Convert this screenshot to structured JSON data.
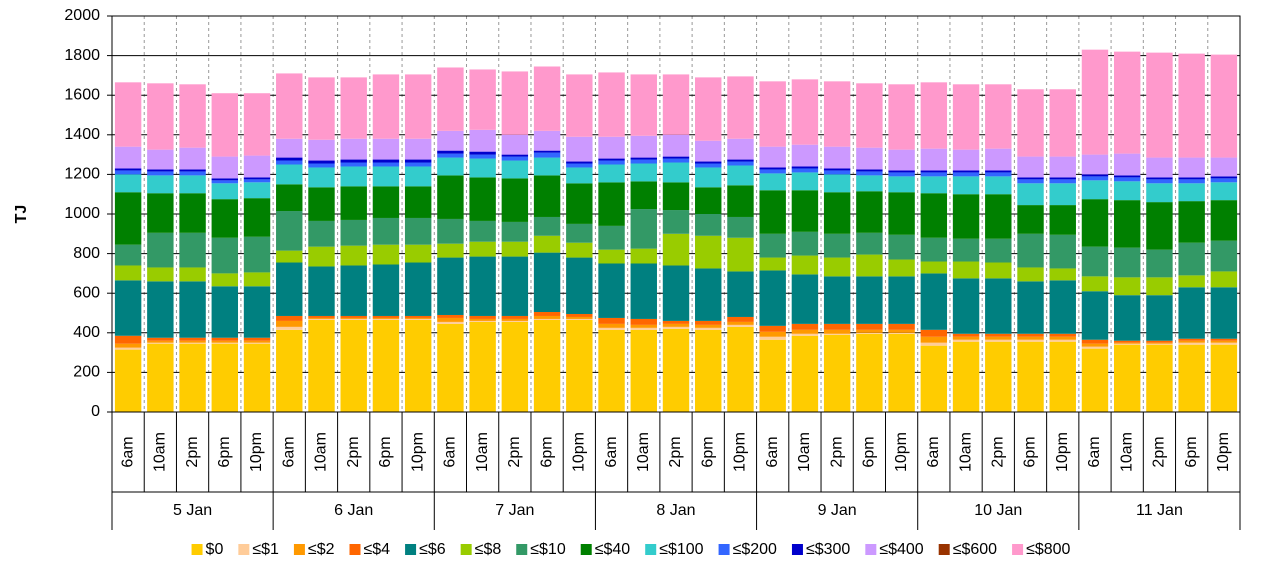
{
  "chart_data": {
    "type": "stacked-bar",
    "y_label": "TJ",
    "categories": [
      "6am",
      "10am",
      "2pm",
      "6pm",
      "10pm",
      "6am",
      "10am",
      "2pm",
      "6pm",
      "10pm",
      "6am",
      "10am",
      "2pm",
      "6pm",
      "10pm",
      "6am",
      "10am",
      "2pm",
      "6pm",
      "10pm",
      "6am",
      "10am",
      "2pm",
      "6pm",
      "10pm",
      "6am",
      "10am",
      "2pm",
      "6pm",
      "10pm",
      "6am",
      "10am",
      "2pm",
      "6pm",
      "10pm"
    ],
    "groups": [
      "5 Jan",
      "6 Jan",
      "7 Jan",
      "8 Jan",
      "9 Jan",
      "10 Jan",
      "11 Jan"
    ],
    "ylim": [
      0,
      2000
    ],
    "yticks": [
      0,
      200,
      400,
      600,
      800,
      1000,
      1200,
      1400,
      1600,
      1800,
      2000
    ],
    "grid": true,
    "series": [
      {
        "name": "$0",
        "color": "#FFCC00",
        "values": [
          315,
          345,
          345,
          345,
          345,
          415,
          465,
          465,
          465,
          465,
          445,
          455,
          455,
          465,
          465,
          415,
          415,
          420,
          415,
          430,
          365,
          385,
          390,
          395,
          395,
          335,
          355,
          355,
          355,
          355,
          320,
          340,
          340,
          340,
          340
        ]
      },
      {
        "name": "≤$1",
        "color": "#FFCC99",
        "values": [
          10,
          5,
          5,
          5,
          5,
          15,
          5,
          5,
          5,
          5,
          10,
          5,
          5,
          5,
          5,
          10,
          10,
          10,
          10,
          10,
          15,
          10,
          5,
          5,
          5,
          15,
          10,
          10,
          10,
          10,
          10,
          5,
          5,
          10,
          10
        ]
      },
      {
        "name": "≤$2",
        "color": "#FF9900",
        "values": [
          20,
          10,
          10,
          10,
          10,
          30,
          5,
          5,
          5,
          5,
          20,
          10,
          10,
          15,
          10,
          20,
          15,
          15,
          15,
          15,
          25,
          20,
          20,
          15,
          15,
          30,
          15,
          15,
          15,
          15,
          15,
          5,
          5,
          10,
          10
        ]
      },
      {
        "name": "≤$4",
        "color": "#FF6600",
        "values": [
          40,
          15,
          15,
          15,
          15,
          25,
          10,
          10,
          10,
          10,
          15,
          15,
          15,
          20,
          15,
          30,
          30,
          15,
          20,
          25,
          30,
          30,
          30,
          30,
          30,
          35,
          15,
          15,
          15,
          15,
          20,
          10,
          10,
          10,
          10
        ]
      },
      {
        "name": "≤$6",
        "color": "#008080",
        "values": [
          280,
          285,
          285,
          260,
          260,
          270,
          250,
          255,
          260,
          270,
          290,
          300,
          300,
          300,
          285,
          275,
          280,
          280,
          265,
          230,
          280,
          250,
          240,
          240,
          240,
          285,
          280,
          280,
          265,
          270,
          245,
          230,
          230,
          260,
          260
        ]
      },
      {
        "name": "≤$8",
        "color": "#99CC00",
        "values": [
          75,
          70,
          70,
          65,
          70,
          60,
          100,
          100,
          100,
          90,
          70,
          75,
          75,
          85,
          75,
          70,
          75,
          160,
          165,
          170,
          65,
          95,
          95,
          110,
          85,
          60,
          85,
          80,
          70,
          60,
          75,
          90,
          90,
          60,
          80
        ]
      },
      {
        "name": "≤$10",
        "color": "#339966",
        "values": [
          105,
          175,
          175,
          180,
          180,
          200,
          130,
          130,
          135,
          135,
          125,
          105,
          100,
          95,
          95,
          120,
          200,
          120,
          110,
          105,
          120,
          120,
          120,
          110,
          125,
          120,
          115,
          120,
          170,
          170,
          150,
          150,
          140,
          165,
          155
        ]
      },
      {
        "name": "≤$40",
        "color": "#008000",
        "values": [
          265,
          200,
          200,
          195,
          195,
          135,
          170,
          170,
          160,
          160,
          220,
          220,
          220,
          210,
          205,
          220,
          140,
          140,
          135,
          160,
          220,
          210,
          210,
          210,
          215,
          225,
          225,
          225,
          145,
          150,
          240,
          240,
          240,
          210,
          205
        ]
      },
      {
        "name": "≤$100",
        "color": "#33CCCC",
        "values": [
          90,
          90,
          90,
          80,
          80,
          100,
          100,
          100,
          100,
          100,
          90,
          95,
          90,
          90,
          80,
          90,
          90,
          100,
          100,
          100,
          85,
          90,
          90,
          80,
          80,
          85,
          90,
          90,
          110,
          110,
          95,
          95,
          95,
          90,
          90
        ]
      },
      {
        "name": "≤$200",
        "color": "#3366FF",
        "values": [
          20,
          20,
          20,
          15,
          15,
          20,
          20,
          20,
          20,
          20,
          20,
          20,
          20,
          25,
          20,
          20,
          20,
          20,
          20,
          20,
          20,
          20,
          20,
          20,
          20,
          20,
          20,
          20,
          20,
          20,
          20,
          20,
          20,
          20,
          20
        ]
      },
      {
        "name": "≤$300",
        "color": "#0000CC",
        "values": [
          10,
          10,
          10,
          10,
          10,
          15,
          15,
          15,
          15,
          15,
          15,
          15,
          10,
          10,
          10,
          10,
          10,
          10,
          10,
          10,
          10,
          10,
          10,
          10,
          10,
          10,
          10,
          10,
          10,
          10,
          10,
          10,
          10,
          10,
          10
        ]
      },
      {
        "name": "≤$400",
        "color": "#CC99FF",
        "values": [
          110,
          100,
          110,
          110,
          110,
          95,
          105,
          105,
          105,
          105,
          100,
          110,
          100,
          100,
          125,
          110,
          110,
          110,
          105,
          105,
          105,
          110,
          110,
          110,
          105,
          110,
          105,
          110,
          105,
          105,
          100,
          110,
          100,
          100,
          95
        ]
      },
      {
        "name": "≤$600",
        "color": "#993300",
        "values": [
          0,
          0,
          0,
          0,
          0,
          0,
          0,
          0,
          0,
          0,
          0,
          0,
          0,
          0,
          0,
          0,
          0,
          0,
          0,
          0,
          0,
          0,
          0,
          0,
          0,
          0,
          0,
          0,
          0,
          0,
          0,
          0,
          0,
          0,
          0
        ]
      },
      {
        "name": "≤$800",
        "color": "#FF99CC",
        "values": [
          325,
          335,
          320,
          320,
          315,
          330,
          315,
          310,
          325,
          325,
          320,
          305,
          320,
          325,
          315,
          325,
          310,
          305,
          320,
          315,
          330,
          330,
          330,
          325,
          330,
          335,
          330,
          325,
          340,
          340,
          530,
          515,
          530,
          525,
          520
        ]
      }
    ]
  }
}
